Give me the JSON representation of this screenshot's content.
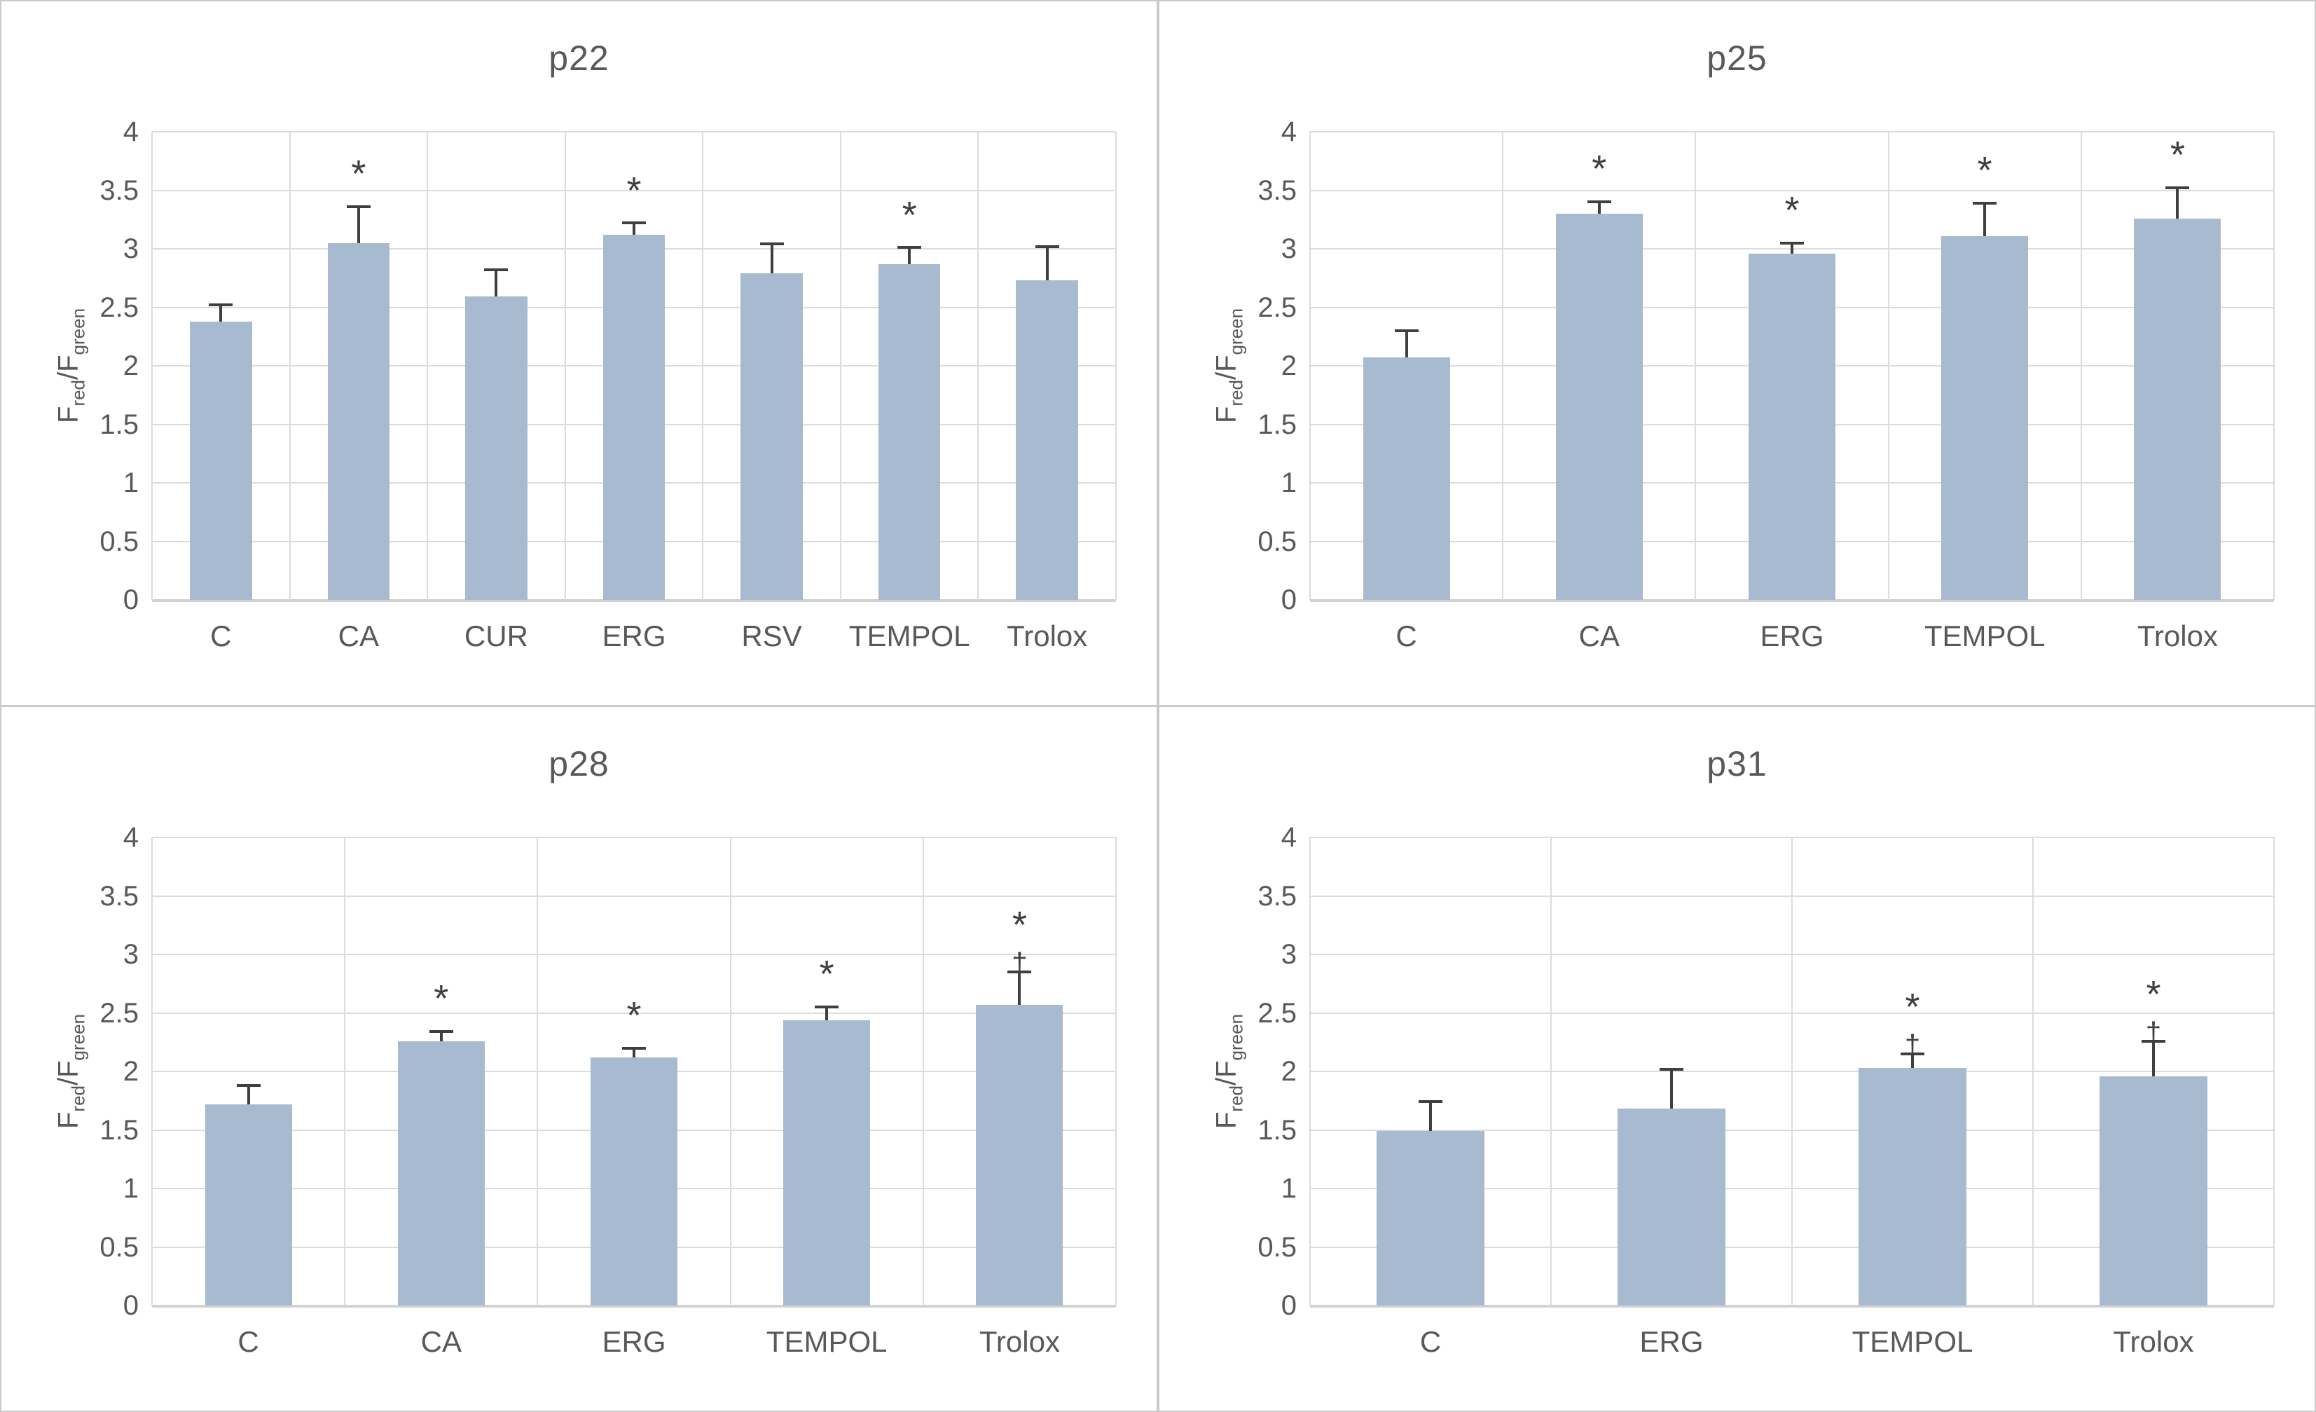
{
  "figure": {
    "ylabel": {
      "main1": "F",
      "sub1": "red",
      "main2": "/F",
      "sub2": "green"
    },
    "y_ticks": [
      "0",
      "0.5",
      "1",
      "1.5",
      "2",
      "2.5",
      "3",
      "3.5",
      "4"
    ],
    "symbols": {
      "star": "*",
      "dagger": "†"
    },
    "colors": {
      "bar": "#a8bacf",
      "gridline": "#dcdcdc",
      "axis": "#d2d2d2",
      "error_bar": "#3f3f3f",
      "text": "#595959",
      "panel_border": "#cbcbcb"
    }
  },
  "chart_data": [
    {
      "type": "bar",
      "title": "p22",
      "xlabel": "",
      "ylabel": "Fred/Fgreen",
      "ylim": [
        0,
        4
      ],
      "grid": true,
      "categories": [
        "C",
        "CA",
        "CUR",
        "ERG",
        "RSV",
        "TEMPOL",
        "Trolox"
      ],
      "values": [
        2.38,
        3.05,
        2.59,
        3.12,
        2.79,
        2.87,
        2.73
      ],
      "error_top": [
        2.52,
        3.36,
        2.82,
        3.22,
        3.04,
        3.01,
        3.02
      ],
      "sig": [
        "",
        "*",
        "",
        "*",
        "",
        "*",
        ""
      ]
    },
    {
      "type": "bar",
      "title": "p25",
      "xlabel": "",
      "ylabel": "Fred/Fgreen",
      "ylim": [
        0,
        4
      ],
      "grid": true,
      "categories": [
        "C",
        "CA",
        "ERG",
        "TEMPOL",
        "Trolox"
      ],
      "values": [
        2.07,
        3.3,
        2.96,
        3.11,
        3.26
      ],
      "error_top": [
        2.3,
        3.4,
        3.05,
        3.39,
        3.52
      ],
      "sig": [
        "",
        "*",
        "*",
        "*",
        "*"
      ]
    },
    {
      "type": "bar",
      "title": "p28",
      "xlabel": "",
      "ylabel": "Fred/Fgreen",
      "ylim": [
        0,
        4
      ],
      "grid": true,
      "categories": [
        "C",
        "CA",
        "ERG",
        "TEMPOL",
        "Trolox"
      ],
      "values": [
        1.72,
        2.26,
        2.12,
        2.44,
        2.57
      ],
      "error_top": [
        1.88,
        2.34,
        2.2,
        2.55,
        2.85
      ],
      "sig": [
        "",
        "*",
        "*",
        "*",
        "*†"
      ]
    },
    {
      "type": "bar",
      "title": "p31",
      "xlabel": "",
      "ylabel": "Fred/Fgreen",
      "ylim": [
        0,
        4
      ],
      "grid": true,
      "categories": [
        "C",
        "ERG",
        "TEMPOL",
        "Trolox"
      ],
      "values": [
        1.49,
        1.68,
        2.03,
        1.96
      ],
      "error_top": [
        1.74,
        2.02,
        2.15,
        2.26
      ],
      "sig": [
        "",
        "",
        "*†",
        "*†"
      ]
    }
  ]
}
